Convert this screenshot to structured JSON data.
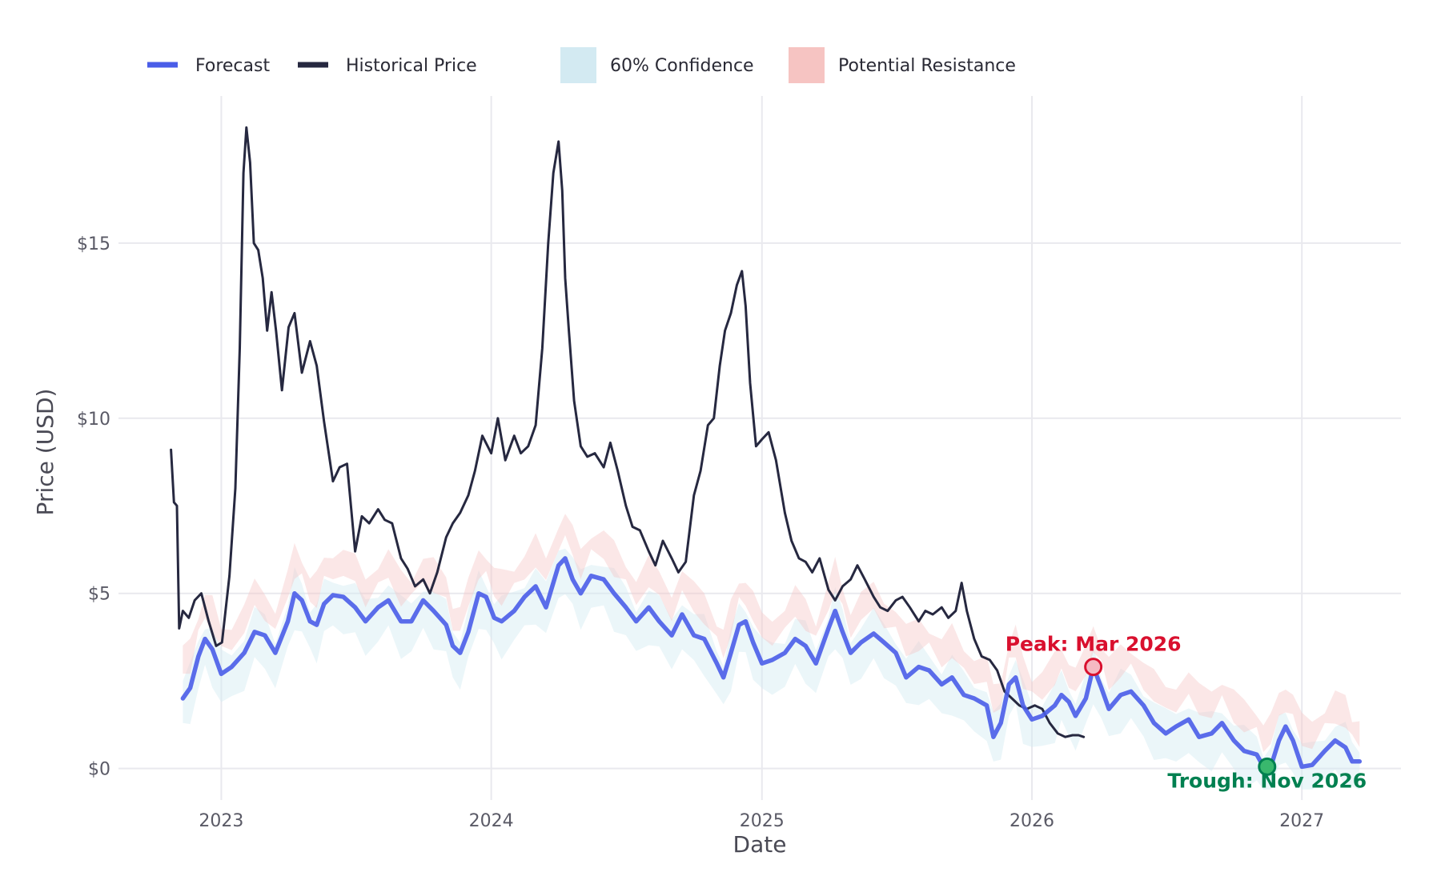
{
  "chart_data": {
    "type": "line",
    "title": "",
    "xlabel": "Date",
    "ylabel": "Price (USD)",
    "xlim": [
      "2022-08-15",
      "2027-05-15"
    ],
    "ylim": [
      -0.9,
      19.2
    ],
    "x_ticks": [
      "2023-01-01",
      "2024-01-01",
      "2025-01-01",
      "2026-01-01",
      "2027-01-01"
    ],
    "x_tick_labels": [
      "2023",
      "2024",
      "2025",
      "2026",
      "2027"
    ],
    "y_ticks": [
      0,
      5,
      10,
      15
    ],
    "y_tick_labels": [
      "$0",
      "$5",
      "$10",
      "$15"
    ],
    "grid": true,
    "legend_position": "top-left",
    "legend": [
      {
        "label": "Forecast",
        "kind": "line",
        "color": "#4a5de8"
      },
      {
        "label": "Historical Price",
        "kind": "line",
        "color": "#262840"
      },
      {
        "label": "60% Confidence",
        "kind": "fill",
        "color": "#d3eaf2"
      },
      {
        "label": "Potential Resistance",
        "kind": "fill",
        "color": "#f6c4c2"
      }
    ],
    "series": [
      {
        "name": "Historical Price",
        "color": "#262840",
        "points": [
          [
            "2022-10-25",
            9.1
          ],
          [
            "2022-10-29",
            7.6
          ],
          [
            "2022-11-02",
            7.5
          ],
          [
            "2022-11-05",
            4.0
          ],
          [
            "2022-11-10",
            4.5
          ],
          [
            "2022-11-18",
            4.3
          ],
          [
            "2022-11-26",
            4.8
          ],
          [
            "2022-12-05",
            5.0
          ],
          [
            "2022-12-15",
            4.2
          ],
          [
            "2022-12-25",
            3.5
          ],
          [
            "2023-01-02",
            3.6
          ],
          [
            "2023-01-12",
            5.5
          ],
          [
            "2023-01-20",
            8.0
          ],
          [
            "2023-01-26",
            12.0
          ],
          [
            "2023-01-31",
            17.0
          ],
          [
            "2023-02-04",
            18.3
          ],
          [
            "2023-02-09",
            17.3
          ],
          [
            "2023-02-14",
            15.0
          ],
          [
            "2023-02-20",
            14.8
          ],
          [
            "2023-02-26",
            14.0
          ],
          [
            "2023-03-04",
            12.5
          ],
          [
            "2023-03-10",
            13.6
          ],
          [
            "2023-03-16",
            12.5
          ],
          [
            "2023-03-24",
            10.8
          ],
          [
            "2023-04-02",
            12.6
          ],
          [
            "2023-04-10",
            13.0
          ],
          [
            "2023-04-20",
            11.3
          ],
          [
            "2023-05-01",
            12.2
          ],
          [
            "2023-05-10",
            11.5
          ],
          [
            "2023-05-20",
            9.9
          ],
          [
            "2023-06-01",
            8.2
          ],
          [
            "2023-06-10",
            8.6
          ],
          [
            "2023-06-20",
            8.7
          ],
          [
            "2023-07-01",
            6.2
          ],
          [
            "2023-07-10",
            7.2
          ],
          [
            "2023-07-20",
            7.0
          ],
          [
            "2023-08-01",
            7.4
          ],
          [
            "2023-08-10",
            7.1
          ],
          [
            "2023-08-20",
            7.0
          ],
          [
            "2023-09-01",
            6.0
          ],
          [
            "2023-09-10",
            5.7
          ],
          [
            "2023-09-20",
            5.2
          ],
          [
            "2023-10-01",
            5.4
          ],
          [
            "2023-10-10",
            5.0
          ],
          [
            "2023-10-20",
            5.6
          ],
          [
            "2023-11-01",
            6.6
          ],
          [
            "2023-11-10",
            7.0
          ],
          [
            "2023-11-20",
            7.3
          ],
          [
            "2023-12-01",
            7.8
          ],
          [
            "2023-12-10",
            8.5
          ],
          [
            "2023-12-20",
            9.5
          ],
          [
            "2024-01-01",
            9.0
          ],
          [
            "2024-01-10",
            10.0
          ],
          [
            "2024-01-20",
            8.8
          ],
          [
            "2024-02-01",
            9.5
          ],
          [
            "2024-02-10",
            9.0
          ],
          [
            "2024-02-20",
            9.2
          ],
          [
            "2024-03-01",
            9.8
          ],
          [
            "2024-03-10",
            12.0
          ],
          [
            "2024-03-18",
            15.0
          ],
          [
            "2024-03-25",
            17.0
          ],
          [
            "2024-04-01",
            17.9
          ],
          [
            "2024-04-06",
            16.5
          ],
          [
            "2024-04-10",
            14.0
          ],
          [
            "2024-04-15",
            12.5
          ],
          [
            "2024-04-22",
            10.5
          ],
          [
            "2024-05-01",
            9.2
          ],
          [
            "2024-05-10",
            8.9
          ],
          [
            "2024-05-20",
            9.0
          ],
          [
            "2024-06-01",
            8.6
          ],
          [
            "2024-06-10",
            9.3
          ],
          [
            "2024-06-20",
            8.5
          ],
          [
            "2024-07-01",
            7.5
          ],
          [
            "2024-07-10",
            6.9
          ],
          [
            "2024-07-20",
            6.8
          ],
          [
            "2024-08-01",
            6.2
          ],
          [
            "2024-08-10",
            5.8
          ],
          [
            "2024-08-20",
            6.5
          ],
          [
            "2024-09-01",
            6.0
          ],
          [
            "2024-09-10",
            5.6
          ],
          [
            "2024-09-20",
            5.9
          ],
          [
            "2024-10-01",
            7.8
          ],
          [
            "2024-10-10",
            8.5
          ],
          [
            "2024-10-20",
            9.8
          ],
          [
            "2024-10-28",
            10.0
          ],
          [
            "2024-11-05",
            11.5
          ],
          [
            "2024-11-12",
            12.5
          ],
          [
            "2024-11-20",
            13.0
          ],
          [
            "2024-11-28",
            13.8
          ],
          [
            "2024-12-05",
            14.2
          ],
          [
            "2024-12-10",
            13.2
          ],
          [
            "2024-12-16",
            11.0
          ],
          [
            "2024-12-24",
            9.2
          ],
          [
            "2025-01-01",
            9.4
          ],
          [
            "2025-01-10",
            9.6
          ],
          [
            "2025-01-20",
            8.8
          ],
          [
            "2025-02-01",
            7.3
          ],
          [
            "2025-02-10",
            6.5
          ],
          [
            "2025-02-20",
            6.0
          ],
          [
            "2025-03-01",
            5.9
          ],
          [
            "2025-03-10",
            5.6
          ],
          [
            "2025-03-20",
            6.0
          ],
          [
            "2025-04-01",
            5.1
          ],
          [
            "2025-04-10",
            4.8
          ],
          [
            "2025-04-20",
            5.2
          ],
          [
            "2025-05-01",
            5.4
          ],
          [
            "2025-05-10",
            5.8
          ],
          [
            "2025-05-20",
            5.4
          ],
          [
            "2025-06-01",
            4.9
          ],
          [
            "2025-06-10",
            4.6
          ],
          [
            "2025-06-20",
            4.5
          ],
          [
            "2025-07-01",
            4.8
          ],
          [
            "2025-07-10",
            4.9
          ],
          [
            "2025-07-20",
            4.6
          ],
          [
            "2025-08-01",
            4.2
          ],
          [
            "2025-08-10",
            4.5
          ],
          [
            "2025-08-20",
            4.4
          ],
          [
            "2025-09-01",
            4.6
          ],
          [
            "2025-09-10",
            4.3
          ],
          [
            "2025-09-20",
            4.5
          ],
          [
            "2025-09-28",
            5.3
          ],
          [
            "2025-10-05",
            4.5
          ],
          [
            "2025-10-15",
            3.7
          ],
          [
            "2025-10-25",
            3.2
          ],
          [
            "2025-11-05",
            3.1
          ],
          [
            "2025-11-15",
            2.8
          ],
          [
            "2025-11-25",
            2.2
          ],
          [
            "2025-12-05",
            2.0
          ],
          [
            "2025-12-15",
            1.8
          ],
          [
            "2025-12-25",
            1.7
          ],
          [
            "2026-01-05",
            1.8
          ],
          [
            "2026-01-15",
            1.7
          ],
          [
            "2026-01-25",
            1.3
          ],
          [
            "2026-02-05",
            1.0
          ],
          [
            "2026-02-15",
            0.9
          ],
          [
            "2026-02-25",
            0.95
          ],
          [
            "2026-03-05",
            0.95
          ],
          [
            "2026-03-12",
            0.9
          ]
        ]
      },
      {
        "name": "Forecast",
        "color": "#4a5de8",
        "points": [
          [
            "2022-11-10",
            2.0
          ],
          [
            "2022-11-20",
            2.3
          ],
          [
            "2022-12-01",
            3.2
          ],
          [
            "2022-12-10",
            3.7
          ],
          [
            "2022-12-20",
            3.4
          ],
          [
            "2023-01-01",
            2.7
          ],
          [
            "2023-01-15",
            2.9
          ],
          [
            "2023-02-01",
            3.3
          ],
          [
            "2023-02-15",
            3.9
          ],
          [
            "2023-03-01",
            3.8
          ],
          [
            "2023-03-15",
            3.3
          ],
          [
            "2023-04-01",
            4.2
          ],
          [
            "2023-04-10",
            5.0
          ],
          [
            "2023-04-20",
            4.8
          ],
          [
            "2023-05-01",
            4.2
          ],
          [
            "2023-05-10",
            4.1
          ],
          [
            "2023-05-20",
            4.7
          ],
          [
            "2023-06-01",
            4.95
          ],
          [
            "2023-06-15",
            4.9
          ],
          [
            "2023-07-01",
            4.6
          ],
          [
            "2023-07-15",
            4.2
          ],
          [
            "2023-08-01",
            4.6
          ],
          [
            "2023-08-15",
            4.8
          ],
          [
            "2023-09-01",
            4.2
          ],
          [
            "2023-09-15",
            4.2
          ],
          [
            "2023-10-01",
            4.8
          ],
          [
            "2023-10-15",
            4.5
          ],
          [
            "2023-11-01",
            4.1
          ],
          [
            "2023-11-10",
            3.5
          ],
          [
            "2023-11-20",
            3.3
          ],
          [
            "2023-12-01",
            3.9
          ],
          [
            "2023-12-15",
            5.0
          ],
          [
            "2023-12-25",
            4.9
          ],
          [
            "2024-01-05",
            4.3
          ],
          [
            "2024-01-15",
            4.2
          ],
          [
            "2024-02-01",
            4.5
          ],
          [
            "2024-02-15",
            4.9
          ],
          [
            "2024-03-01",
            5.2
          ],
          [
            "2024-03-15",
            4.6
          ],
          [
            "2024-04-01",
            5.8
          ],
          [
            "2024-04-10",
            6.0
          ],
          [
            "2024-04-20",
            5.4
          ],
          [
            "2024-05-01",
            5.0
          ],
          [
            "2024-05-15",
            5.5
          ],
          [
            "2024-06-01",
            5.4
          ],
          [
            "2024-06-15",
            5.0
          ],
          [
            "2024-07-01",
            4.6
          ],
          [
            "2024-07-15",
            4.2
          ],
          [
            "2024-08-01",
            4.6
          ],
          [
            "2024-08-15",
            4.2
          ],
          [
            "2024-09-01",
            3.8
          ],
          [
            "2024-09-15",
            4.4
          ],
          [
            "2024-10-01",
            3.8
          ],
          [
            "2024-10-15",
            3.7
          ],
          [
            "2024-11-01",
            3.0
          ],
          [
            "2024-11-10",
            2.6
          ],
          [
            "2024-11-20",
            3.3
          ],
          [
            "2024-12-01",
            4.1
          ],
          [
            "2024-12-10",
            4.2
          ],
          [
            "2024-12-20",
            3.6
          ],
          [
            "2025-01-01",
            3.0
          ],
          [
            "2025-01-15",
            3.1
          ],
          [
            "2025-02-01",
            3.3
          ],
          [
            "2025-02-15",
            3.7
          ],
          [
            "2025-03-01",
            3.5
          ],
          [
            "2025-03-15",
            3.0
          ],
          [
            "2025-04-01",
            4.0
          ],
          [
            "2025-04-10",
            4.5
          ],
          [
            "2025-04-20",
            3.9
          ],
          [
            "2025-05-01",
            3.3
          ],
          [
            "2025-05-15",
            3.6
          ],
          [
            "2025-06-01",
            3.85
          ],
          [
            "2025-06-15",
            3.6
          ],
          [
            "2025-07-01",
            3.3
          ],
          [
            "2025-07-15",
            2.6
          ],
          [
            "2025-08-01",
            2.9
          ],
          [
            "2025-08-15",
            2.8
          ],
          [
            "2025-09-01",
            2.4
          ],
          [
            "2025-09-15",
            2.6
          ],
          [
            "2025-10-01",
            2.1
          ],
          [
            "2025-10-15",
            2.0
          ],
          [
            "2025-11-01",
            1.8
          ],
          [
            "2025-11-10",
            0.9
          ],
          [
            "2025-11-20",
            1.3
          ],
          [
            "2025-12-01",
            2.4
          ],
          [
            "2025-12-10",
            2.6
          ],
          [
            "2025-12-20",
            1.8
          ],
          [
            "2026-01-01",
            1.4
          ],
          [
            "2026-01-15",
            1.5
          ],
          [
            "2026-02-01",
            1.8
          ],
          [
            "2026-02-10",
            2.1
          ],
          [
            "2026-02-20",
            1.9
          ],
          [
            "2026-03-01",
            1.5
          ],
          [
            "2026-03-15",
            2.0
          ],
          [
            "2026-03-25",
            2.9
          ],
          [
            "2026-04-05",
            2.3
          ],
          [
            "2026-04-15",
            1.7
          ],
          [
            "2026-05-01",
            2.1
          ],
          [
            "2026-05-15",
            2.2
          ],
          [
            "2026-06-01",
            1.8
          ],
          [
            "2026-06-15",
            1.3
          ],
          [
            "2026-07-01",
            1.0
          ],
          [
            "2026-07-15",
            1.2
          ],
          [
            "2026-08-01",
            1.4
          ],
          [
            "2026-08-15",
            0.9
          ],
          [
            "2026-09-01",
            1.0
          ],
          [
            "2026-09-15",
            1.3
          ],
          [
            "2026-10-01",
            0.8
          ],
          [
            "2026-10-15",
            0.5
          ],
          [
            "2026-11-01",
            0.4
          ],
          [
            "2026-11-10",
            0.05
          ],
          [
            "2026-11-20",
            0.05
          ],
          [
            "2026-12-01",
            0.8
          ],
          [
            "2026-12-10",
            1.2
          ],
          [
            "2026-12-20",
            0.8
          ],
          [
            "2027-01-01",
            0.05
          ],
          [
            "2027-01-15",
            0.1
          ],
          [
            "2027-02-01",
            0.5
          ],
          [
            "2027-02-15",
            0.8
          ],
          [
            "2027-03-01",
            0.6
          ],
          [
            "2027-03-10",
            0.2
          ],
          [
            "2027-03-20",
            0.2
          ]
        ]
      }
    ],
    "bands": [
      {
        "name": "60% Confidence",
        "color": "#d3eaf2",
        "offset_low": -0.9,
        "offset_high": 0.5
      },
      {
        "name": "Potential Resistance",
        "color": "#f6c4c2",
        "offset_low": 0.6,
        "offset_high": 1.3
      }
    ],
    "annotations": [
      {
        "text": "Peak: Mar 2026",
        "x": "2026-03-25",
        "y": 2.9,
        "color": "#d9102e",
        "label_position": "above"
      },
      {
        "text": "Trough: Nov 2026",
        "x": "2026-11-15",
        "y": 0.05,
        "color": "#008050",
        "label_position": "below"
      }
    ]
  }
}
